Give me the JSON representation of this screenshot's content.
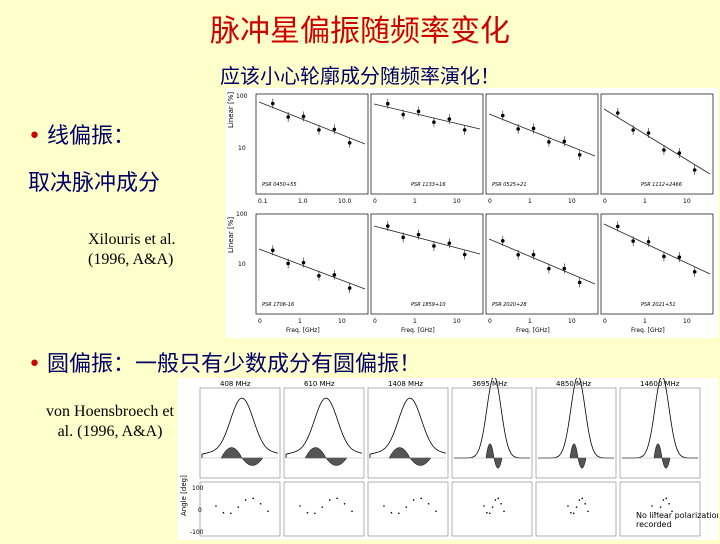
{
  "slide": {
    "title": "脉冲星偏振随频率变化",
    "subtitle": "应该小心轮廓成分随频率演化！",
    "linear_bullet": "线偏振：",
    "linear_desc": "取决脉冲成分",
    "circular_bullet": "圆偏振：一般只有少数成分有圆偏振！",
    "ref1_line1": "Xilouris et al.",
    "ref1_line2": "(1996, A&A)",
    "ref2_line1": "von Hoensbroech et",
    "ref2_line2": "al. (1996, A&A)"
  },
  "figure1": {
    "ylabel_top": "Linear [%]",
    "ylabel_bottom": "Linear [%]",
    "tick_100": "100",
    "tick_10": "10",
    "xlabel": "Freq. [GHz]",
    "top_xticks": [
      "0.1",
      "1.0",
      "10.0",
      "0",
      "1",
      "10",
      "0",
      "1",
      "10",
      "0",
      "1",
      "10"
    ],
    "bottom_xticks": [
      "0",
      "1",
      "10",
      "0",
      "1",
      "10",
      "0",
      "1",
      "10",
      "0",
      "1",
      "10"
    ],
    "pulsars": [
      "PSR 0450+55",
      "PSR 1133+16",
      "PSR 0525+21",
      "PSR 1112+2466",
      "PSR 1706-16",
      "PSR 1859+10",
      "PSR 2020+28",
      "PSR 2021+51"
    ]
  },
  "figure2": {
    "freqs": [
      "408 MHz",
      "610 MHz",
      "1408 MHz",
      "3695 MHz",
      "4850 MHz",
      "14600 MHz"
    ],
    "angle_label": "Angle [deg]",
    "tick_100": "100",
    "tick_0": "0",
    "tick_m100": "-100",
    "note_line1": "No linear polarization",
    "note_line2": "recorded"
  }
}
